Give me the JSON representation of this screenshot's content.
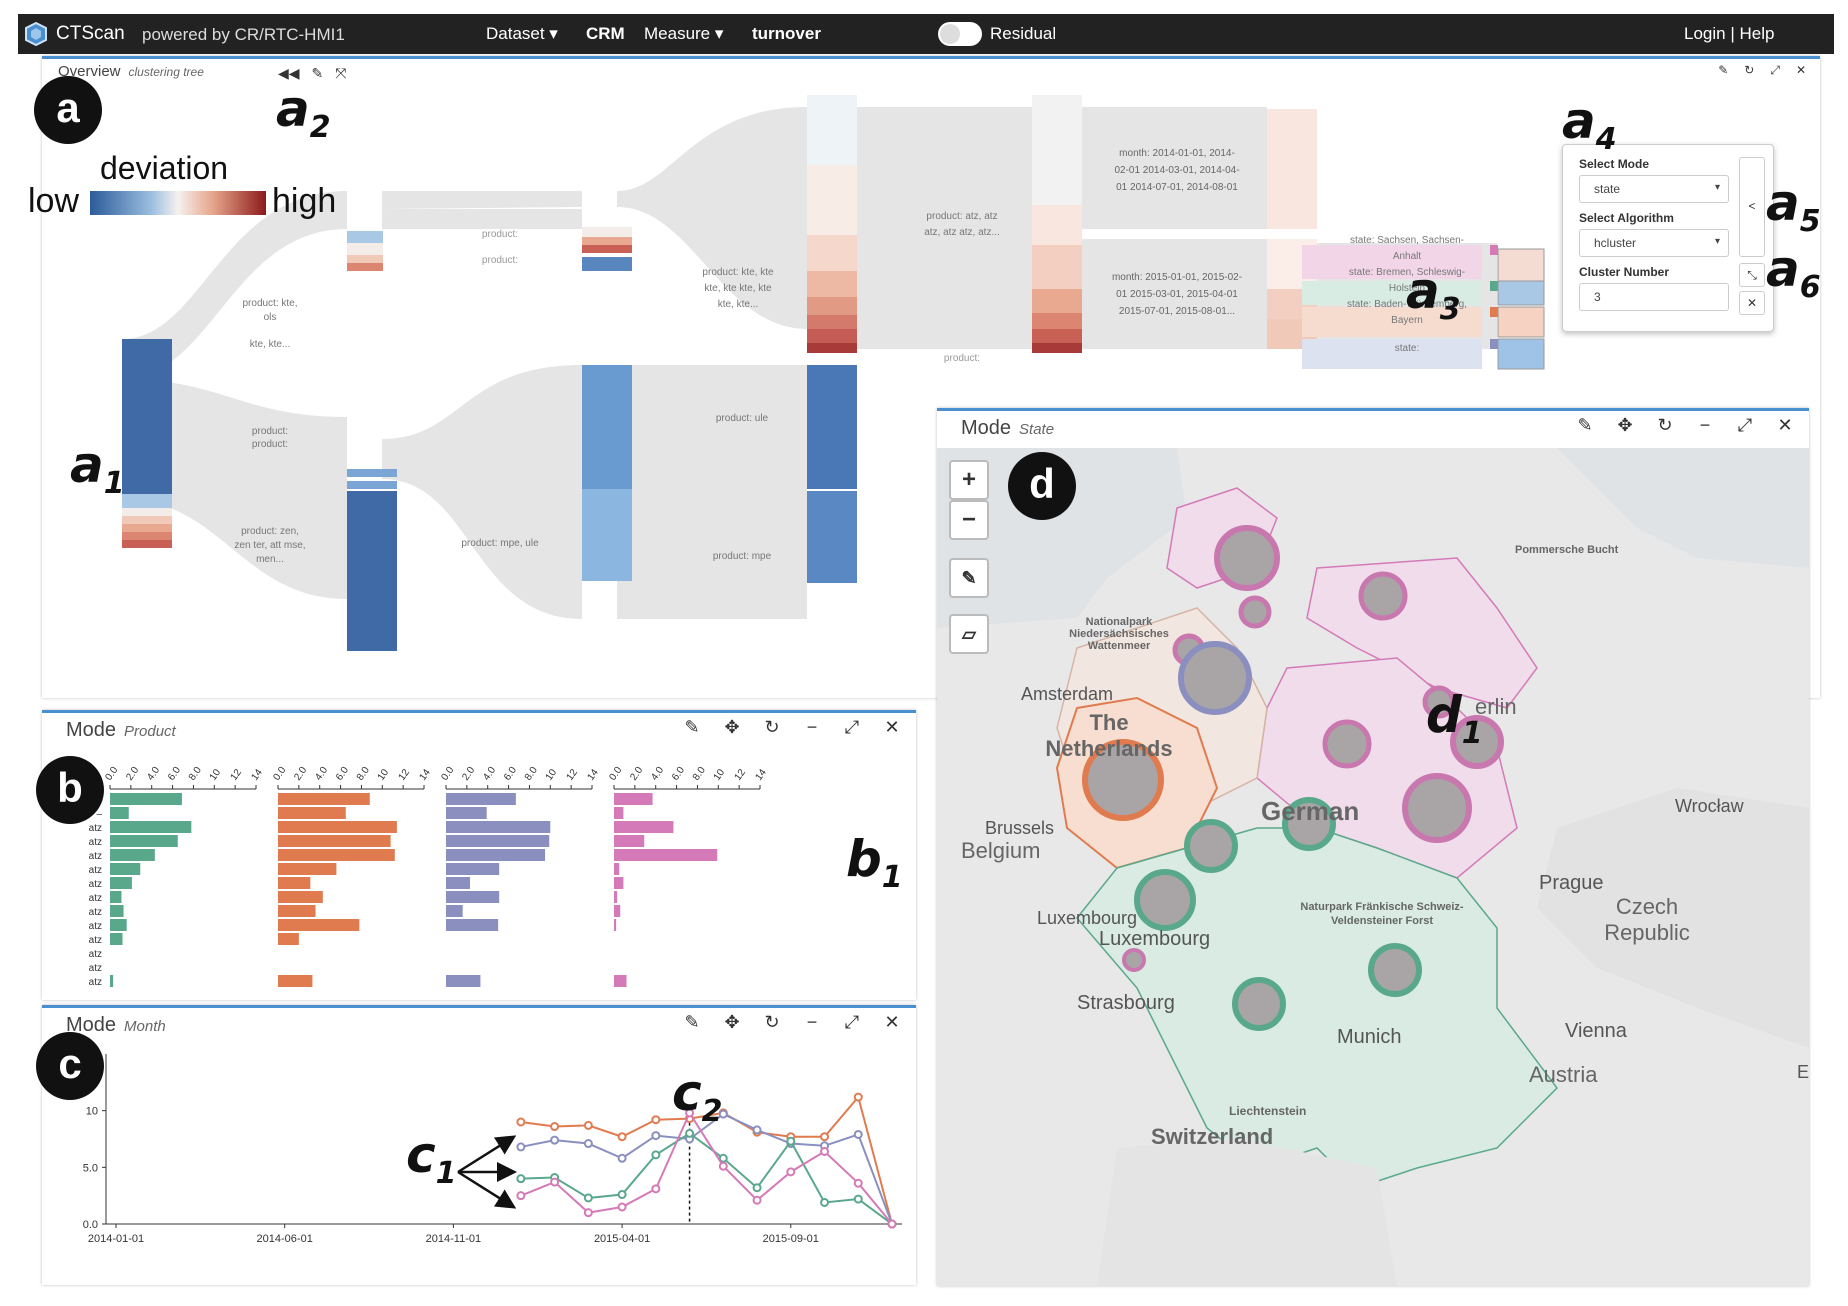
{
  "navbar": {
    "brand": "CTScan",
    "powered_by": "powered by CR/RTC-HMI1",
    "dataset_menu": "Dataset ▾",
    "dataset_value": "CRM",
    "measure_menu": "Measure ▾",
    "measure_value": "turnover",
    "residual_label": "Residual",
    "login_help": "Login | Help"
  },
  "colors": {
    "accent": "#4a8fd0",
    "low": "#2c5b9a",
    "high": "#8b1a1a",
    "green": "#5aa88b",
    "orange": "#e07b4f",
    "purple": "#8a8fbf",
    "pink": "#d47ab8"
  },
  "overview": {
    "title": "Overview",
    "subtitle": "clustering tree",
    "tools": [
      "◀◀",
      "✎",
      "⤧"
    ],
    "legend_title": "deviation",
    "legend_low": "low",
    "legend_high": "high",
    "labels": {
      "product_kte_ols": "product: kte, ols",
      "kte_kte": "kte, kte...",
      "product_product": "product: product:",
      "product_zen": "product: zen, zen ter, att mse, men...",
      "product_a": "product:",
      "product_b": "product:",
      "product_kte4": "product: kte, kte kte, kte kte, kte kte, kte...",
      "product_mpe_ule": "product: mpe, ule",
      "product_atz": "product: atz, atz atz, atz atz, atz...",
      "product_ule": "product: ule",
      "product_mpe": "product: mpe",
      "month_2014": "month: 2014-01-01, 2014-02-01 2014-03-01, 2014-04-01 2014-07-01, 2014-08-01",
      "month_2015": "month: 2015-01-01, 2015-02-01 2015-03-01, 2015-04-01 2015-07-01, 2015-08-01...",
      "product_bottom": "product:",
      "state1": "state: Sachsen, Sachsen-Anhalt",
      "state2": "state: Bremen, Schleswig-Holstein",
      "state3": "state: Baden-Württemberg, Bayern",
      "state4": "state:"
    }
  },
  "popup": {
    "mode_label": "Select Mode",
    "mode_value": "state",
    "algo_label": "Select Algorithm",
    "algo_value": "hcluster",
    "cluster_label": "Cluster Number",
    "cluster_value": "3"
  },
  "annotations": {
    "a": "a",
    "a1": "a",
    "a2": "a",
    "a3": "a",
    "a4": "a",
    "a5": "a",
    "a6": "a",
    "b": "b",
    "b1": "b",
    "c": "c",
    "c1": "c",
    "c2": "c",
    "d": "d",
    "d1": "d",
    "s1": "1",
    "s2": "2",
    "s3": "3",
    "s4": "4",
    "s5": "5",
    "s6": "6"
  },
  "product_panel": {
    "title": "Mode",
    "subtitle": "Product",
    "tools": [
      "✎",
      "✥",
      "↻",
      "−",
      "⤢",
      "✕"
    ],
    "axis_ticks": [
      "0.0",
      "2.0",
      "4.0",
      "6.0",
      "8.0",
      "10",
      "12",
      "14"
    ],
    "row_labels": [
      "–",
      "–",
      "atz",
      "atz",
      "atz",
      "atz",
      "atz",
      "atz",
      "atz",
      "atz",
      "atz",
      "atz",
      "atz",
      "atz"
    ]
  },
  "chart_data": [
    {
      "type": "bar",
      "orientation": "horizontal",
      "xlim": [
        0,
        14
      ],
      "categories": [
        "",
        "",
        "atz",
        "atz",
        "atz",
        "atz",
        "atz",
        "atz",
        "atz",
        "atz",
        "atz",
        "atz",
        "atz",
        "atz"
      ],
      "series": [
        {
          "values": [
            6.9,
            1.8,
            7.8,
            6.5,
            4.3,
            2.9,
            2.1,
            1.1,
            1.3,
            1.6,
            1.2,
            0,
            0,
            0.3
          ],
          "color": "#5aa88b"
        },
        {
          "values": [
            8.8,
            6.5,
            11.4,
            10.8,
            11.2,
            5.6,
            3.1,
            4.3,
            3.6,
            7.8,
            2.0,
            0,
            0,
            3.3
          ],
          "color": "#e07b4f"
        },
        {
          "values": [
            6.7,
            3.9,
            10.0,
            9.9,
            9.5,
            5.1,
            2.3,
            5.1,
            1.6,
            5.0,
            0,
            0,
            0,
            3.3
          ],
          "color": "#8a8fbf"
        },
        {
          "values": [
            3.7,
            0.9,
            5.7,
            2.9,
            9.9,
            0.5,
            0.9,
            0.3,
            0.6,
            0.2,
            0,
            0,
            0,
            1.2
          ],
          "color": "#d47ab8"
        }
      ]
    },
    {
      "type": "line",
      "x_ticks": [
        "2014-01-01",
        "2014-06-01",
        "2014-11-01",
        "2015-04-01",
        "2015-09-01"
      ],
      "y_ticks": [
        "0.0",
        "5.0",
        "10"
      ],
      "ylim": [
        0,
        15
      ],
      "x_start_index": 12,
      "x": [
        12,
        13,
        14,
        15,
        16,
        17,
        18,
        19,
        20,
        21,
        22,
        23
      ],
      "series": [
        {
          "color": "#e07b4f",
          "values": [
            9.0,
            8.6,
            8.7,
            7.7,
            9.2,
            9.3,
            9.8,
            8.1,
            7.7,
            7.7,
            11.2,
            0
          ]
        },
        {
          "color": "#8a8fbf",
          "values": [
            6.8,
            7.4,
            7.1,
            5.8,
            7.8,
            7.5,
            9.7,
            8.3,
            7.1,
            6.9,
            7.9,
            0
          ]
        },
        {
          "color": "#5aa88b",
          "values": [
            4.0,
            4.1,
            2.3,
            2.6,
            6.1,
            8.0,
            5.8,
            3.2,
            7.3,
            1.9,
            2.2,
            0
          ]
        },
        {
          "color": "#d47ab8",
          "values": [
            2.5,
            3.7,
            1.0,
            1.5,
            3.1,
            9.8,
            5.1,
            2.1,
            4.6,
            6.4,
            3.6,
            0
          ]
        }
      ],
      "marker_x": 17
    }
  ],
  "month_panel": {
    "title": "Mode",
    "subtitle": "Month",
    "tools": [
      "✎",
      "✥",
      "↻",
      "−",
      "⤢",
      "✕"
    ]
  },
  "state_panel": {
    "title": "Mode",
    "subtitle": "State",
    "tools": [
      "✎",
      "✥",
      "↻",
      "−",
      "⤢",
      "✕"
    ],
    "zoom_in": "+",
    "zoom_out": "−",
    "places": {
      "pommersche": "Pommersche Bucht",
      "nationalpark": "Nationalpark Niedersächsisches Wattenmeer",
      "amsterdam": "Amsterdam",
      "netherlands": "The Netherlands",
      "berlin": "erlin",
      "germany": "German",
      "brussels": "Brussels",
      "belgium": "Belgium",
      "wroclaw": "Wrocław",
      "prague": "Prague",
      "czech": "Czech Republic",
      "frankische": "Naturpark Fränkische Schweiz-Veldensteiner Forst",
      "luxembourg": "Luxembourg",
      "luxembourg2": "Luxembourg",
      "strasbourg": "Strasbourg",
      "munich": "Munich",
      "vienna": "Vienna",
      "austria": "Austria",
      "liechtenstein": "Liechtenstein",
      "switzerland": "Switzerland",
      "e": "E"
    }
  }
}
